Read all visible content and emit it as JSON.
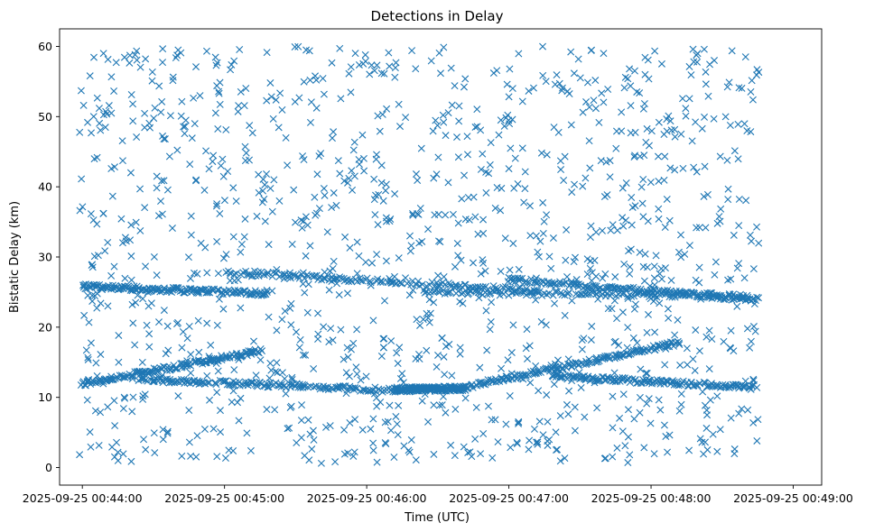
{
  "chart_data": {
    "type": "scatter",
    "title": "Detections in Delay",
    "xlabel": "Time (UTC)",
    "ylabel": "Bistatic Delay (km)",
    "marker": "x",
    "color": "#1f77b4",
    "xlim_seconds": [
      -160,
      5200
    ],
    "ylim": [
      -2.5,
      62.5
    ],
    "x_ticks": [
      {
        "seconds": 0,
        "label": "2025-09-25 00:44:00"
      },
      {
        "seconds": 1000,
        "label": "2025-09-25 00:45:00"
      },
      {
        "seconds": 2000,
        "label": "2025-09-25 00:46:00"
      },
      {
        "seconds": 3000,
        "label": "2025-09-25 00:47:00"
      },
      {
        "seconds": 4000,
        "label": "2025-09-25 00:48:00"
      },
      {
        "seconds": 5000,
        "label": "2025-09-25 00:49:00"
      }
    ],
    "y_ticks": [
      0,
      10,
      20,
      30,
      40,
      50,
      60
    ],
    "x_time_scale_note": "x values in 1/1000 of a minute offsets from 00:44:00",
    "tracks": [
      {
        "name": "rising track",
        "x_start": -10,
        "x_end": 1250,
        "y_start": 11.9,
        "y_end": 16.6
      },
      {
        "name": "descending track",
        "x_start": 400,
        "x_end": 2200,
        "y_start": 12.6,
        "y_end": 11.0
      },
      {
        "name": "flat low track",
        "x_start": 2200,
        "x_end": 2700,
        "y_start": 11.1,
        "y_end": 11.3
      },
      {
        "name": "second rising track",
        "x_start": 2700,
        "x_end": 4200,
        "y_start": 11.5,
        "y_end": 17.8
      },
      {
        "name": "second descending track",
        "x_start": 3300,
        "x_end": 4750,
        "y_start": 13.0,
        "y_end": 11.4
      },
      {
        "name": "upper band A",
        "x_start": 0,
        "x_end": 1300,
        "y_start": 25.8,
        "y_end": 24.8
      },
      {
        "name": "upper band B",
        "x_start": 1000,
        "x_end": 3200,
        "y_start": 27.9,
        "y_end": 25.2
      },
      {
        "name": "upper band C",
        "x_start": 3000,
        "x_end": 4750,
        "y_start": 26.8,
        "y_end": 23.9
      },
      {
        "name": "lower clutter band",
        "x_start": 2400,
        "x_end": 4700,
        "y_start": 25.0,
        "y_end": 24.5
      }
    ],
    "track_points_per_series": 180,
    "scatter_seed": 7,
    "scatter_points": 1250,
    "scatter_x_range": [
      -20,
      4760
    ],
    "scatter_y_range": [
      0.5,
      60
    ]
  }
}
